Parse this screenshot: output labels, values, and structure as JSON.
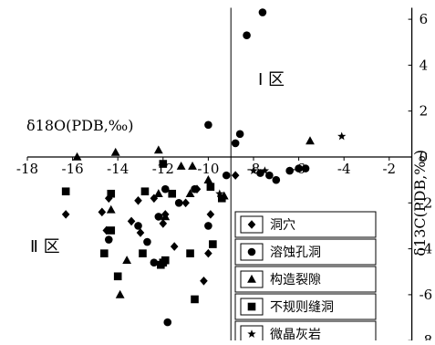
{
  "chart_data": {
    "type": "scatter",
    "xlabel": "δ18O(PDB,‰)",
    "ylabel": "δ13C(PDB,‰)",
    "xlim": [
      -18,
      -1
    ],
    "ylim": [
      -8,
      6.5
    ],
    "x_ticks": [
      "-18",
      "-16",
      "-14",
      "-12",
      "-10",
      "-8",
      "-6",
      "-4",
      "-2"
    ],
    "y_ticks": [
      "6",
      "4",
      "2",
      "0",
      "-2",
      "-4",
      "-6",
      "-8"
    ],
    "region_labels": {
      "region1": "Ⅰ 区",
      "region2": "Ⅱ 区"
    },
    "legend_position": "bottom-right",
    "series": [
      {
        "name": "洞穴",
        "marker": "diamond",
        "points": [
          [
            -14.4,
            -1.8
          ],
          [
            -14.7,
            -2.4
          ],
          [
            -16.3,
            -2.5
          ],
          [
            -13.1,
            -1.9
          ],
          [
            -13.4,
            -2.8
          ],
          [
            -12.4,
            -1.8
          ],
          [
            -11.9,
            -2.5
          ],
          [
            -10.5,
            -1.4
          ],
          [
            -9.9,
            -2.5
          ],
          [
            -10.0,
            -4.2
          ],
          [
            -10.2,
            -5.4
          ],
          [
            -11.5,
            -3.9
          ],
          [
            -12.0,
            -2.9
          ],
          [
            -11.0,
            -2.0
          ],
          [
            -14.5,
            -3.2
          ],
          [
            -13.0,
            -3.3
          ],
          [
            -8.8,
            -0.8
          ]
        ]
      },
      {
        "name": "溶蚀孔洞",
        "marker": "circle",
        "points": [
          [
            -7.6,
            6.3
          ],
          [
            -8.3,
            5.3
          ],
          [
            -10.0,
            1.4
          ],
          [
            -8.6,
            1.0
          ],
          [
            -8.8,
            0.6
          ],
          [
            -9.2,
            -0.8
          ],
          [
            -7.7,
            -0.7
          ],
          [
            -7.3,
            -0.8
          ],
          [
            -7.0,
            -1.0
          ],
          [
            -6.4,
            -0.6
          ],
          [
            -6.0,
            -0.5
          ],
          [
            -5.7,
            -0.5
          ],
          [
            -11.9,
            -1.4
          ],
          [
            -10.6,
            -1.4
          ],
          [
            -11.3,
            -2.0
          ],
          [
            -13.1,
            -3.0
          ],
          [
            -12.2,
            -2.6
          ],
          [
            -14.4,
            -3.6
          ],
          [
            -12.7,
            -3.7
          ],
          [
            -12.4,
            -4.6
          ],
          [
            -10.0,
            -3.0
          ],
          [
            -8.3,
            -3.9
          ],
          [
            -11.8,
            -7.2
          ]
        ]
      },
      {
        "name": "构造裂隙",
        "marker": "triangle",
        "points": [
          [
            -15.8,
            0.0
          ],
          [
            -14.1,
            0.2
          ],
          [
            -12.2,
            0.3
          ],
          [
            -11.2,
            -0.4
          ],
          [
            -10.7,
            -0.4
          ],
          [
            -10.0,
            -1.0
          ],
          [
            -14.3,
            -2.3
          ],
          [
            -12.2,
            -1.6
          ],
          [
            -11.9,
            -2.6
          ],
          [
            -10.8,
            -1.6
          ],
          [
            -9.3,
            -1.7
          ],
          [
            -13.6,
            -4.5
          ],
          [
            -13.9,
            -6.0
          ],
          [
            -5.5,
            0.7
          ]
        ]
      },
      {
        "name": "不规则缝洞",
        "marker": "square",
        "points": [
          [
            -16.3,
            -1.5
          ],
          [
            -14.3,
            -1.6
          ],
          [
            -12.8,
            -1.5
          ],
          [
            -11.6,
            -1.6
          ],
          [
            -12.0,
            -0.3
          ],
          [
            -9.9,
            -1.3
          ],
          [
            -9.4,
            -1.8
          ],
          [
            -14.3,
            -3.2
          ],
          [
            -14.6,
            -4.2
          ],
          [
            -14.0,
            -5.2
          ],
          [
            -12.9,
            -4.2
          ],
          [
            -12.0,
            -4.6
          ],
          [
            -12.1,
            -4.7
          ],
          [
            -10.8,
            -4.2
          ],
          [
            -9.8,
            -3.8
          ],
          [
            -10.6,
            -6.2
          ],
          [
            -11.9,
            -4.5
          ]
        ]
      },
      {
        "name": "微晶灰岩",
        "marker": "star",
        "points": [
          [
            -4.1,
            0.9
          ],
          [
            -9.5,
            -1.6
          ],
          [
            -8.0,
            -0.6
          ],
          [
            -7.5,
            -0.6
          ]
        ]
      }
    ]
  }
}
